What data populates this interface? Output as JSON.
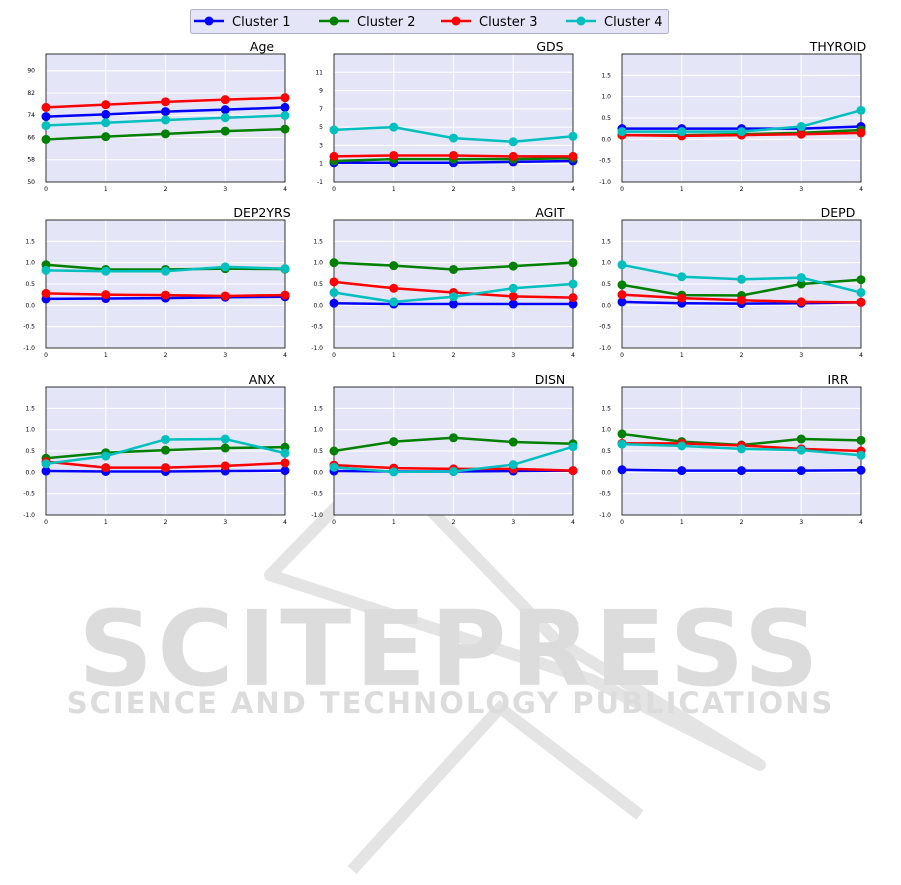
{
  "legend": {
    "placement": "top-center",
    "items": [
      {
        "label": "Cluster 1",
        "color": "#0000ff"
      },
      {
        "label": "Cluster 2",
        "color": "#008000"
      },
      {
        "label": "Cluster 3",
        "color": "#ff0000"
      },
      {
        "label": "Cluster 4",
        "color": "#00bfbf"
      }
    ]
  },
  "style": {
    "plot_background": "#e5e5f8",
    "grid": true
  },
  "chart_data": [
    {
      "type": "line",
      "title": "Age",
      "x": [
        0,
        1,
        2,
        3,
        4
      ],
      "ylim": [
        50,
        96
      ],
      "yticks": [
        "50",
        "58",
        "66",
        "74",
        "82",
        "90"
      ],
      "series": [
        {
          "name": "Cluster 1",
          "values": [
            73.5,
            74.3,
            75.3,
            76.0,
            76.8
          ]
        },
        {
          "name": "Cluster 2",
          "values": [
            65.3,
            66.3,
            67.3,
            68.3,
            69.0
          ]
        },
        {
          "name": "Cluster 3",
          "values": [
            76.8,
            77.8,
            78.8,
            79.6,
            80.3
          ]
        },
        {
          "name": "Cluster 4",
          "values": [
            70.3,
            71.3,
            72.3,
            73.1,
            73.9
          ]
        }
      ]
    },
    {
      "type": "line",
      "title": "GDS",
      "x": [
        0,
        1,
        2,
        3,
        4
      ],
      "ylim": [
        -1,
        13
      ],
      "yticks": [
        "-1",
        "1",
        "3",
        "5",
        "7",
        "9",
        "11"
      ],
      "series": [
        {
          "name": "Cluster 1",
          "values": [
            1.1,
            1.1,
            1.1,
            1.2,
            1.3
          ]
        },
        {
          "name": "Cluster 2",
          "values": [
            1.3,
            1.5,
            1.5,
            1.5,
            1.6
          ]
        },
        {
          "name": "Cluster 3",
          "values": [
            1.8,
            1.9,
            1.9,
            1.8,
            1.8
          ]
        },
        {
          "name": "Cluster 4",
          "values": [
            4.7,
            5.0,
            3.8,
            3.4,
            4.0
          ]
        }
      ]
    },
    {
      "type": "line",
      "title": "THYROID",
      "x": [
        0,
        1,
        2,
        3,
        4
      ],
      "ylim": [
        -1.0,
        2.0
      ],
      "yticks": [
        "-1.0",
        "-0.5",
        "0.0",
        "0.5",
        "1.0",
        "1.5"
      ],
      "series": [
        {
          "name": "Cluster 1",
          "values": [
            0.25,
            0.25,
            0.25,
            0.25,
            0.3
          ]
        },
        {
          "name": "Cluster 2",
          "values": [
            0.1,
            0.1,
            0.12,
            0.15,
            0.22
          ]
        },
        {
          "name": "Cluster 3",
          "values": [
            0.1,
            0.08,
            0.1,
            0.12,
            0.15
          ]
        },
        {
          "name": "Cluster 4",
          "values": [
            0.18,
            0.18,
            0.18,
            0.3,
            0.68
          ]
        }
      ]
    },
    {
      "type": "line",
      "title": "DEP2YRS",
      "x": [
        0,
        1,
        2,
        3,
        4
      ],
      "ylim": [
        -1.0,
        2.0
      ],
      "yticks": [
        "-1.0",
        "-0.5",
        "0.0",
        "0.5",
        "1.0",
        "1.5"
      ],
      "series": [
        {
          "name": "Cluster 1",
          "values": [
            0.15,
            0.16,
            0.17,
            0.19,
            0.2
          ]
        },
        {
          "name": "Cluster 2",
          "values": [
            0.95,
            0.84,
            0.84,
            0.86,
            0.85
          ]
        },
        {
          "name": "Cluster 3",
          "values": [
            0.28,
            0.25,
            0.24,
            0.22,
            0.24
          ]
        },
        {
          "name": "Cluster 4",
          "values": [
            0.82,
            0.8,
            0.8,
            0.9,
            0.86
          ]
        }
      ]
    },
    {
      "type": "line",
      "title": "AGIT",
      "x": [
        0,
        1,
        2,
        3,
        4
      ],
      "ylim": [
        -1.0,
        2.0
      ],
      "yticks": [
        "-1.0",
        "-0.5",
        "0.0",
        "0.5",
        "1.0",
        "1.5"
      ],
      "series": [
        {
          "name": "Cluster 1",
          "values": [
            0.05,
            0.03,
            0.03,
            0.03,
            0.03
          ]
        },
        {
          "name": "Cluster 2",
          "values": [
            1.0,
            0.93,
            0.84,
            0.92,
            1.0
          ]
        },
        {
          "name": "Cluster 3",
          "values": [
            0.55,
            0.4,
            0.3,
            0.21,
            0.18
          ]
        },
        {
          "name": "Cluster 4",
          "values": [
            0.3,
            0.08,
            0.2,
            0.4,
            0.5
          ]
        }
      ]
    },
    {
      "type": "line",
      "title": "DEPD",
      "x": [
        0,
        1,
        2,
        3,
        4
      ],
      "ylim": [
        -1.0,
        2.0
      ],
      "yticks": [
        "-1.0",
        "-0.5",
        "0.0",
        "0.5",
        "1.0",
        "1.5"
      ],
      "series": [
        {
          "name": "Cluster 1",
          "values": [
            0.08,
            0.05,
            0.04,
            0.05,
            0.07
          ]
        },
        {
          "name": "Cluster 2",
          "values": [
            0.48,
            0.24,
            0.23,
            0.5,
            0.6
          ]
        },
        {
          "name": "Cluster 3",
          "values": [
            0.25,
            0.17,
            0.12,
            0.08,
            0.07
          ]
        },
        {
          "name": "Cluster 4",
          "values": [
            0.95,
            0.67,
            0.61,
            0.65,
            0.3
          ]
        }
      ]
    },
    {
      "type": "line",
      "title": "ANX",
      "x": [
        0,
        1,
        2,
        3,
        4
      ],
      "ylim": [
        -1.0,
        2.0
      ],
      "yticks": [
        "-1.0",
        "-0.5",
        "0.0",
        "0.5",
        "1.0",
        "1.5"
      ],
      "series": [
        {
          "name": "Cluster 1",
          "values": [
            0.03,
            0.02,
            0.02,
            0.03,
            0.04
          ]
        },
        {
          "name": "Cluster 2",
          "values": [
            0.33,
            0.46,
            0.52,
            0.57,
            0.59
          ]
        },
        {
          "name": "Cluster 3",
          "values": [
            0.25,
            0.11,
            0.11,
            0.15,
            0.22
          ]
        },
        {
          "name": "Cluster 4",
          "values": [
            0.2,
            0.38,
            0.77,
            0.78,
            0.45
          ]
        }
      ]
    },
    {
      "type": "line",
      "title": "DISN",
      "x": [
        0,
        1,
        2,
        3,
        4
      ],
      "ylim": [
        -1.0,
        2.0
      ],
      "yticks": [
        "-1.0",
        "-0.5",
        "0.0",
        "0.5",
        "1.0",
        "1.5"
      ],
      "series": [
        {
          "name": "Cluster 1",
          "values": [
            0.03,
            0.02,
            0.02,
            0.03,
            0.04
          ]
        },
        {
          "name": "Cluster 2",
          "values": [
            0.5,
            0.72,
            0.81,
            0.71,
            0.67
          ]
        },
        {
          "name": "Cluster 3",
          "values": [
            0.17,
            0.1,
            0.08,
            0.08,
            0.04
          ]
        },
        {
          "name": "Cluster 4",
          "values": [
            0.12,
            0.01,
            0.02,
            0.18,
            0.6
          ]
        }
      ]
    },
    {
      "type": "line",
      "title": "IRR",
      "x": [
        0,
        1,
        2,
        3,
        4
      ],
      "ylim": [
        -1.0,
        2.0
      ],
      "yticks": [
        "-1.0",
        "-0.5",
        "0.0",
        "0.5",
        "1.0",
        "1.5"
      ],
      "series": [
        {
          "name": "Cluster 1",
          "values": [
            0.06,
            0.04,
            0.04,
            0.04,
            0.05
          ]
        },
        {
          "name": "Cluster 2",
          "values": [
            0.9,
            0.72,
            0.64,
            0.78,
            0.75
          ]
        },
        {
          "name": "Cluster 3",
          "values": [
            0.68,
            0.68,
            0.63,
            0.55,
            0.5
          ]
        },
        {
          "name": "Cluster 4",
          "values": [
            0.66,
            0.62,
            0.55,
            0.52,
            0.4
          ]
        }
      ]
    }
  ],
  "watermark": {
    "title": "SCITEPRESS",
    "subtitle": "SCIENCE AND TECHNOLOGY PUBLICATIONS"
  }
}
